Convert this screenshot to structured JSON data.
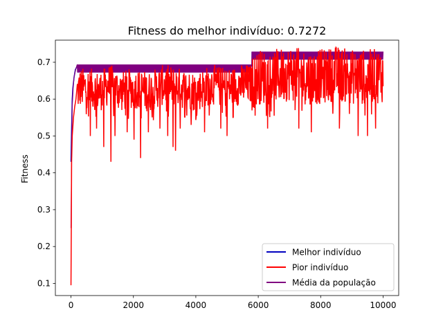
{
  "chart_data": {
    "type": "line",
    "title": "Fitness do melhor indivíduo: 0.7272",
    "xlabel": "",
    "ylabel": "Fitness",
    "xlim": [
      -500,
      10500
    ],
    "ylim": [
      0.067,
      0.76
    ],
    "x_ticks": [
      0,
      2000,
      4000,
      6000,
      8000,
      10000
    ],
    "y_ticks": [
      0.1,
      0.2,
      0.3,
      0.4,
      0.5,
      0.6,
      0.7
    ],
    "x_tick_labels": [
      "0",
      "2000",
      "4000",
      "6000",
      "8000",
      "10000"
    ],
    "y_tick_labels": [
      "0.1",
      "0.2",
      "0.3",
      "0.4",
      "0.5",
      "0.6",
      "0.7"
    ],
    "grid": false,
    "legend_position": "lower right",
    "series": [
      {
        "name": "Melhor indivíduo",
        "color": "#0000bf",
        "points": [
          [
            0,
            0.43
          ],
          [
            20,
            0.52
          ],
          [
            40,
            0.6
          ],
          [
            60,
            0.63
          ],
          [
            100,
            0.66
          ],
          [
            140,
            0.68
          ],
          [
            200,
            0.69
          ],
          [
            400,
            0.69
          ],
          [
            5800,
            0.69
          ],
          [
            5800,
            0.7272
          ],
          [
            10000,
            0.7272
          ]
        ]
      },
      {
        "name": "Pior indivíduo",
        "color": "#ff0000",
        "points": [
          [
            0,
            0.095
          ],
          [
            10,
            0.25
          ],
          [
            20,
            0.43
          ],
          [
            40,
            0.5
          ],
          [
            80,
            0.55
          ],
          [
            120,
            0.58
          ],
          [
            160,
            0.6
          ],
          [
            200,
            0.62
          ],
          [
            300,
            0.63
          ],
          [
            600,
            0.63
          ],
          [
            900,
            0.62
          ],
          [
            1250,
            0.64
          ],
          [
            1600,
            0.62
          ],
          [
            2000,
            0.63
          ],
          [
            2500,
            0.62
          ],
          [
            3000,
            0.64
          ],
          [
            3500,
            0.63
          ],
          [
            4000,
            0.62
          ],
          [
            4500,
            0.64
          ],
          [
            5000,
            0.63
          ],
          [
            5500,
            0.64
          ],
          [
            5800,
            0.64
          ],
          [
            6000,
            0.66
          ],
          [
            6500,
            0.66
          ],
          [
            7000,
            0.67
          ],
          [
            7500,
            0.66
          ],
          [
            8000,
            0.66
          ],
          [
            8500,
            0.67
          ],
          [
            9000,
            0.66
          ],
          [
            9500,
            0.66
          ],
          [
            10000,
            0.665
          ]
        ],
        "noise_band": [
          0.055,
          0.075
        ],
        "dips": [
          [
            620,
            0.5
          ],
          [
            820,
            0.52
          ],
          [
            1050,
            0.47
          ],
          [
            1280,
            0.43
          ],
          [
            1410,
            0.5
          ],
          [
            1800,
            0.51
          ],
          [
            2020,
            0.49
          ],
          [
            2230,
            0.44
          ],
          [
            2480,
            0.51
          ],
          [
            2850,
            0.52
          ],
          [
            3100,
            0.5
          ],
          [
            3270,
            0.47
          ],
          [
            3350,
            0.46
          ],
          [
            3500,
            0.52
          ],
          [
            3850,
            0.53
          ],
          [
            4280,
            0.51
          ],
          [
            4800,
            0.52
          ],
          [
            5000,
            0.5
          ],
          [
            6300,
            0.52
          ],
          [
            7300,
            0.52
          ],
          [
            7700,
            0.51
          ],
          [
            8600,
            0.52
          ],
          [
            9200,
            0.5
          ],
          [
            9500,
            0.5
          ],
          [
            9760,
            0.52
          ]
        ]
      },
      {
        "name": "Média da população",
        "color": "#800080",
        "points": [
          [
            0,
            0.25
          ],
          [
            20,
            0.45
          ],
          [
            40,
            0.58
          ],
          [
            70,
            0.63
          ],
          [
            100,
            0.66
          ],
          [
            150,
            0.68
          ],
          [
            200,
            0.683
          ],
          [
            400,
            0.683
          ],
          [
            5780,
            0.683
          ],
          [
            5800,
            0.718
          ],
          [
            10000,
            0.718
          ]
        ],
        "band_half_width": 0.011
      }
    ]
  }
}
